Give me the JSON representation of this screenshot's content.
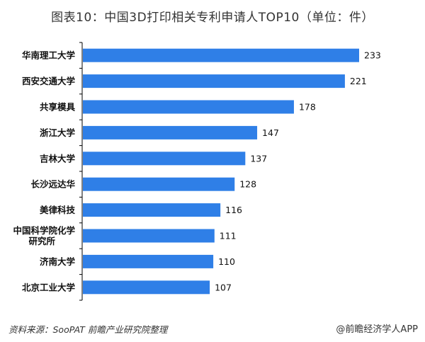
{
  "title": "图表10：中国3D打印相关专利申请人TOP10（单位：件）",
  "source": "资料来源：SooPAT 前瞻产业研究院整理",
  "brand": "@前瞻经济学人APP",
  "colors": {
    "bar": "#2F7FE7"
  },
  "chart_data": {
    "type": "bar",
    "orientation": "horizontal",
    "title": "图表10：中国3D打印相关专利申请人TOP10（单位：件）",
    "categories": [
      "华南理工大学",
      "西安交通大学",
      "共享模具",
      "浙江大学",
      "吉林大学",
      "长沙远达华",
      "美律科技",
      "中国科学院化学研究所",
      "济南大学",
      "北京工业大学"
    ],
    "category_lines": [
      [
        "华南理工大学"
      ],
      [
        "西安交通大学"
      ],
      [
        "共享模具"
      ],
      [
        "浙江大学"
      ],
      [
        "吉林大学"
      ],
      [
        "长沙远达华"
      ],
      [
        "美律科技"
      ],
      [
        "中国科学院化学",
        "研究所"
      ],
      [
        "济南大学"
      ],
      [
        "北京工业大学"
      ]
    ],
    "values": [
      233,
      221,
      178,
      147,
      137,
      128,
      116,
      111,
      110,
      107
    ],
    "data_labels": true,
    "grid": false
  }
}
